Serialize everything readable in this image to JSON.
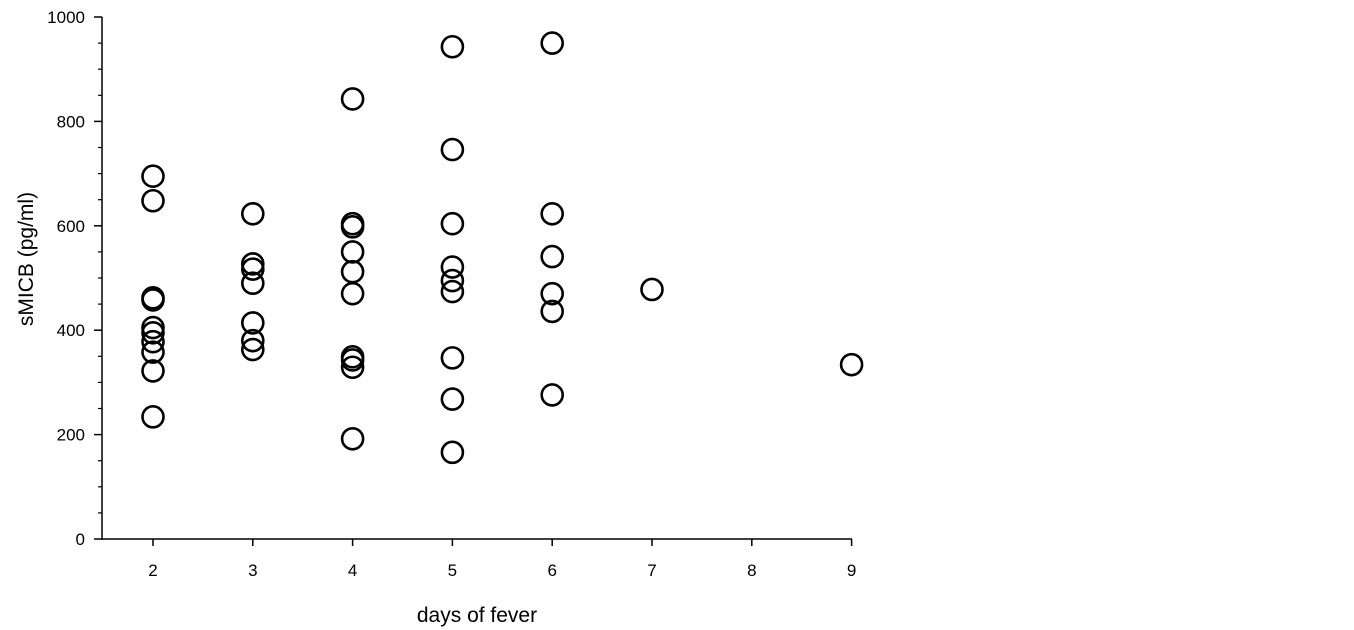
{
  "chart_data": {
    "type": "scatter",
    "title": "",
    "xlabel": "days of fever",
    "ylabel": "sMICB (pg/ml)",
    "xlim": [
      1.5,
      9
    ],
    "ylim": [
      0,
      1000
    ],
    "x_ticks": [
      2,
      3,
      4,
      5,
      6,
      7,
      8,
      9
    ],
    "y_ticks": [
      0,
      200,
      400,
      600,
      800,
      1000
    ],
    "grid": false,
    "marker": "open-circle",
    "colors": {
      "marker_stroke": "#000000",
      "axis": "#000000"
    },
    "points": [
      {
        "x": 2,
        "y": 695
      },
      {
        "x": 2,
        "y": 648
      },
      {
        "x": 2,
        "y": 462
      },
      {
        "x": 2,
        "y": 458
      },
      {
        "x": 2,
        "y": 405
      },
      {
        "x": 2,
        "y": 395
      },
      {
        "x": 2,
        "y": 378
      },
      {
        "x": 2,
        "y": 358
      },
      {
        "x": 2,
        "y": 322
      },
      {
        "x": 2,
        "y": 234
      },
      {
        "x": 3,
        "y": 623
      },
      {
        "x": 3,
        "y": 527
      },
      {
        "x": 3,
        "y": 517
      },
      {
        "x": 3,
        "y": 490
      },
      {
        "x": 3,
        "y": 414
      },
      {
        "x": 3,
        "y": 380
      },
      {
        "x": 3,
        "y": 363
      },
      {
        "x": 4,
        "y": 843
      },
      {
        "x": 4,
        "y": 604
      },
      {
        "x": 4,
        "y": 598
      },
      {
        "x": 4,
        "y": 550
      },
      {
        "x": 4,
        "y": 512
      },
      {
        "x": 4,
        "y": 470
      },
      {
        "x": 4,
        "y": 349
      },
      {
        "x": 4,
        "y": 343
      },
      {
        "x": 4,
        "y": 329
      },
      {
        "x": 4,
        "y": 192
      },
      {
        "x": 5,
        "y": 943
      },
      {
        "x": 5,
        "y": 746
      },
      {
        "x": 5,
        "y": 604
      },
      {
        "x": 5,
        "y": 521
      },
      {
        "x": 5,
        "y": 495
      },
      {
        "x": 5,
        "y": 474
      },
      {
        "x": 5,
        "y": 347
      },
      {
        "x": 5,
        "y": 268
      },
      {
        "x": 5,
        "y": 166
      },
      {
        "x": 6,
        "y": 950
      },
      {
        "x": 6,
        "y": 623
      },
      {
        "x": 6,
        "y": 541
      },
      {
        "x": 6,
        "y": 470
      },
      {
        "x": 6,
        "y": 436
      },
      {
        "x": 6,
        "y": 276
      },
      {
        "x": 7,
        "y": 478
      },
      {
        "x": 9,
        "y": 334
      }
    ]
  }
}
